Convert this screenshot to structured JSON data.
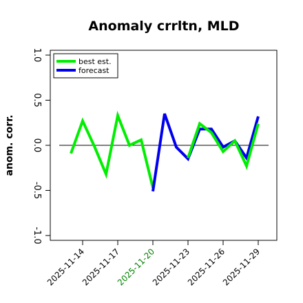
{
  "chart_data": {
    "type": "line",
    "title": "Anomaly crrltn, MLD",
    "ylabel": "anom. corr.",
    "xlabel": "",
    "ylim": [
      -1.0,
      1.0
    ],
    "yticks": [
      "1.0",
      "0.5",
      "0.0",
      "-0.5",
      "-1.0"
    ],
    "ytick_values": [
      1.0,
      0.5,
      0.0,
      -0.5,
      -1.0
    ],
    "x": [
      "2025-11-13",
      "2025-11-14",
      "2025-11-15",
      "2025-11-16",
      "2025-11-17",
      "2025-11-18",
      "2025-11-19",
      "2025-11-20",
      "2025-11-21",
      "2025-11-22",
      "2025-11-23",
      "2025-11-24",
      "2025-11-25",
      "2025-11-26",
      "2025-11-27",
      "2025-11-28",
      "2025-11-29"
    ],
    "xtick_labels": [
      "2025-11-14",
      "2025-11-17",
      "2025-11-20",
      "2025-11-23",
      "2025-11-26",
      "2025-11-29"
    ],
    "xtick_colors": [
      "#000000",
      "#000000",
      "#008000",
      "#000000",
      "#000000",
      "#000000"
    ],
    "reference_line": 0.0,
    "legend_position": "top-left",
    "series": [
      {
        "name": "best est.",
        "color": "#00ee00",
        "values": [
          -0.09,
          0.27,
          -0.01,
          -0.32,
          0.33,
          0.0,
          0.06,
          -0.47,
          null,
          null,
          null,
          null,
          null,
          null,
          null,
          null,
          null
        ]
      },
      {
        "name": "forecast",
        "color": "#0000ee",
        "values": [
          null,
          null,
          null,
          null,
          null,
          null,
          null,
          -0.51,
          0.35,
          -0.02,
          -0.15,
          0.18,
          0.18,
          -0.02,
          0.05,
          -0.14,
          0.32
        ]
      },
      {
        "name": "best est.",
        "color": "#00ee00",
        "values": [
          null,
          null,
          null,
          null,
          null,
          null,
          null,
          null,
          null,
          null,
          -0.14,
          0.24,
          0.14,
          -0.07,
          0.05,
          -0.23,
          0.24
        ]
      }
    ]
  }
}
